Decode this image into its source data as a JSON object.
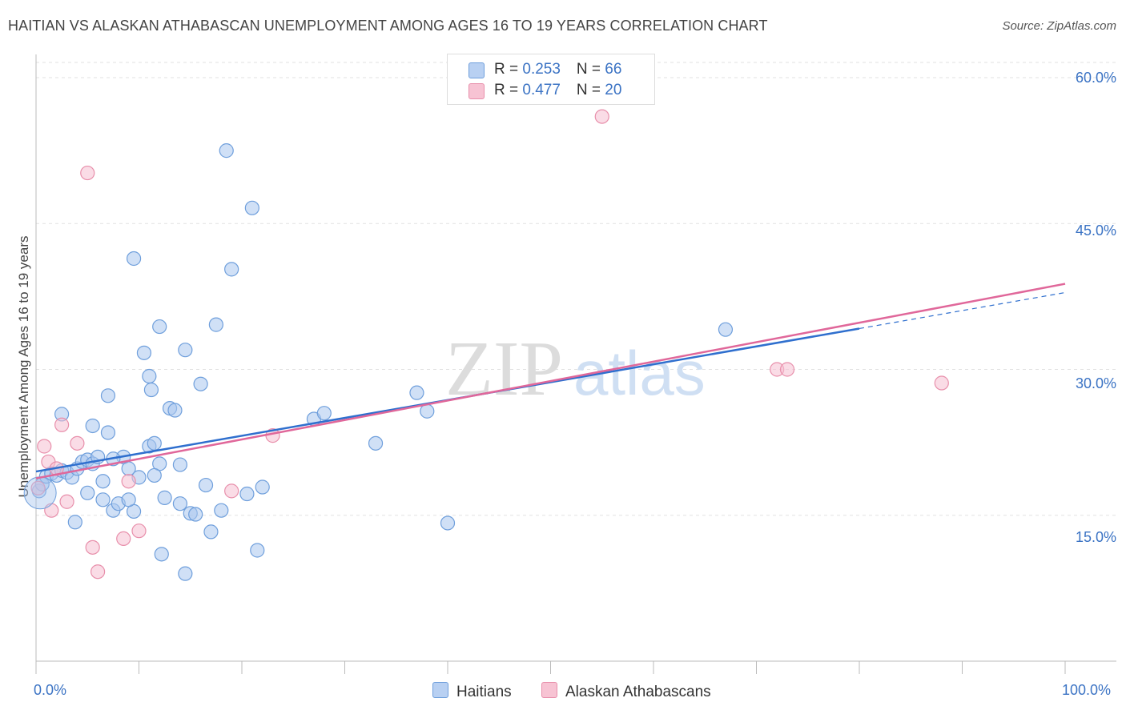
{
  "title": "HAITIAN VS ALASKAN ATHABASCAN UNEMPLOYMENT AMONG AGES 16 TO 19 YEARS CORRELATION CHART",
  "source": "Source: ZipAtlas.com",
  "watermark": {
    "zip": "ZIP",
    "atlas": "atlas"
  },
  "legend_top": [
    {
      "r_label": "R = ",
      "r_value": "0.253",
      "n_label": "N = ",
      "n_value": "66",
      "color": "#b8d0f2"
    },
    {
      "r_label": "R = ",
      "r_value": "0.477",
      "n_label": "N = ",
      "n_value": "20",
      "color": "#f7c3d3"
    }
  ],
  "chart_data": {
    "type": "scatter",
    "title": "HAITIAN VS ALASKAN ATHABASCAN UNEMPLOYMENT AMONG AGES 16 TO 19 YEARS CORRELATION CHART",
    "xlabel": "",
    "ylabel": "Unemployment Among Ages 16 to 19 years",
    "xlim": [
      0,
      100
    ],
    "ylim": [
      0,
      65
    ],
    "x_tick_labels": [
      "0.0%",
      "100.0%"
    ],
    "y_ticks": [
      15,
      30,
      45,
      60
    ],
    "y_tick_labels": [
      "15.0%",
      "30.0%",
      "45.0%",
      "60.0%"
    ],
    "grid": true,
    "legend_position": "bottom",
    "series": [
      {
        "name": "Haitians",
        "color": "#a9c6ee",
        "stroke": "#6f9fdc",
        "trend_color": "#2f6fce",
        "trend": {
          "x0": 0,
          "y0": 19.5,
          "x1": 80,
          "y1": 34.2,
          "dash_to_x": 100,
          "dash_to_y": 37.9
        },
        "points": [
          [
            0.3,
            17.5
          ],
          [
            0.6,
            18.2
          ],
          [
            1.0,
            19.0
          ],
          [
            1.5,
            19.3
          ],
          [
            2.0,
            19.1
          ],
          [
            2.5,
            19.6
          ],
          [
            3.0,
            19.4
          ],
          [
            3.5,
            18.9
          ],
          [
            4.0,
            19.8
          ],
          [
            4.5,
            20.5
          ],
          [
            5.0,
            20.7
          ],
          [
            5.5,
            20.3
          ],
          [
            6.0,
            21.0
          ],
          [
            6.5,
            18.5
          ],
          [
            7.0,
            23.5
          ],
          [
            7.5,
            15.5
          ],
          [
            8.0,
            16.2
          ],
          [
            8.5,
            21.0
          ],
          [
            9.0,
            19.8
          ],
          [
            9.5,
            15.4
          ],
          [
            10.0,
            18.9
          ],
          [
            11.0,
            22.1
          ],
          [
            11.5,
            22.4
          ],
          [
            12.0,
            20.3
          ],
          [
            12.5,
            16.8
          ],
          [
            13.0,
            26.0
          ],
          [
            13.5,
            25.8
          ],
          [
            14.0,
            16.2
          ],
          [
            15.0,
            15.2
          ],
          [
            16.0,
            28.5
          ],
          [
            14.5,
            32.0
          ],
          [
            9.5,
            41.4
          ],
          [
            12.0,
            34.4
          ],
          [
            14.0,
            20.2
          ],
          [
            15.5,
            15.1
          ],
          [
            16.5,
            18.1
          ],
          [
            17.5,
            34.6
          ],
          [
            18.5,
            52.5
          ],
          [
            19.0,
            40.3
          ],
          [
            20.5,
            17.2
          ],
          [
            21.0,
            46.6
          ],
          [
            21.5,
            11.4
          ],
          [
            22.0,
            17.9
          ],
          [
            5.5,
            24.2
          ],
          [
            7.5,
            20.8
          ],
          [
            7.0,
            27.3
          ],
          [
            10.5,
            31.7
          ],
          [
            11.0,
            29.3
          ],
          [
            11.2,
            27.9
          ],
          [
            3.8,
            14.3
          ],
          [
            5.0,
            17.3
          ],
          [
            6.5,
            16.6
          ],
          [
            2.5,
            25.4
          ],
          [
            11.5,
            19.1
          ],
          [
            12.2,
            11.0
          ],
          [
            14.5,
            9.0
          ],
          [
            17.0,
            13.3
          ],
          [
            18.0,
            15.5
          ],
          [
            27.0,
            24.9
          ],
          [
            28.0,
            25.5
          ],
          [
            33.0,
            22.4
          ],
          [
            37.0,
            27.6
          ],
          [
            38.0,
            25.7
          ],
          [
            40.0,
            14.2
          ],
          [
            67.0,
            34.1
          ],
          [
            9.0,
            16.6
          ]
        ]
      },
      {
        "name": "Alaskan Athabascans",
        "color": "#f6c0d1",
        "stroke": "#e88fab",
        "trend_color": "#e0679a",
        "trend": {
          "x0": 0,
          "y0": 18.8,
          "x1": 100,
          "y1": 38.8
        },
        "points": [
          [
            0.2,
            17.8
          ],
          [
            0.8,
            22.1
          ],
          [
            1.2,
            20.5
          ],
          [
            1.5,
            15.5
          ],
          [
            2.0,
            19.8
          ],
          [
            2.5,
            24.3
          ],
          [
            3.0,
            16.4
          ],
          [
            4.0,
            22.4
          ],
          [
            5.0,
            50.2
          ],
          [
            5.5,
            11.7
          ],
          [
            6.0,
            9.2
          ],
          [
            8.5,
            12.6
          ],
          [
            9.0,
            18.5
          ],
          [
            10.0,
            13.4
          ],
          [
            19.0,
            17.5
          ],
          [
            23.0,
            23.2
          ],
          [
            55.0,
            56.0
          ],
          [
            72.0,
            30.0
          ],
          [
            73.0,
            30.0
          ],
          [
            88.0,
            28.6
          ]
        ]
      }
    ]
  }
}
